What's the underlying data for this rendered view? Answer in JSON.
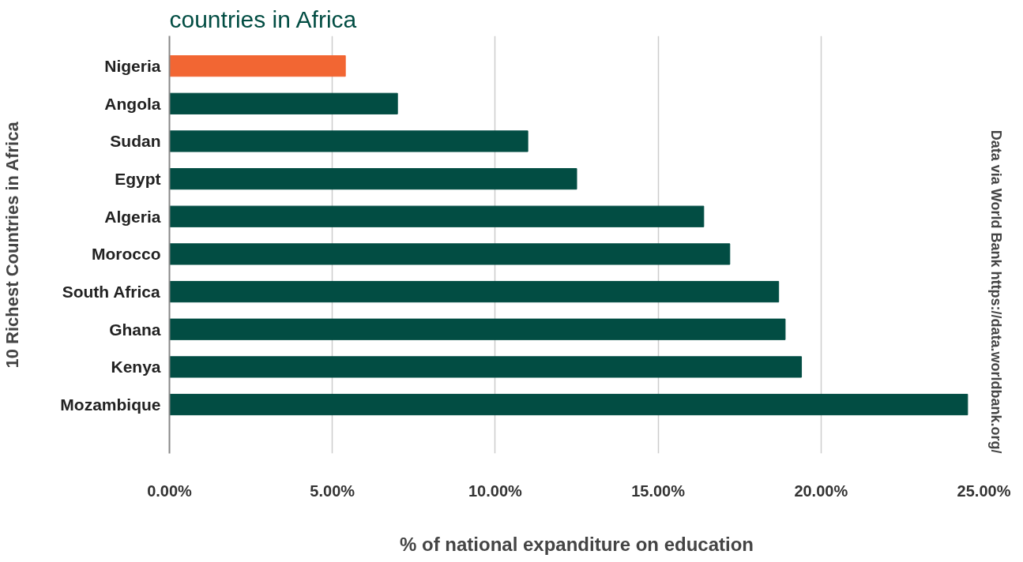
{
  "chart_data": {
    "type": "bar",
    "orientation": "horizontal",
    "title": "countries in Africa",
    "xlabel": "% of national expanditure on education",
    "ylabel": "10 Richest Countries in Africa",
    "annotations": [
      "Data via World Bank https://data.worldbank.org/"
    ],
    "categories": [
      "Nigeria",
      "Angola",
      "Sudan",
      "Egypt",
      "Algeria",
      "Morocco",
      "South Africa",
      "Ghana",
      "Kenya",
      "Mozambique"
    ],
    "values": [
      5.4,
      7.0,
      11.0,
      12.5,
      16.4,
      17.2,
      18.7,
      18.9,
      19.4,
      24.5
    ],
    "colors": [
      "#f26633",
      "#024d43",
      "#024d43",
      "#024d43",
      "#024d43",
      "#024d43",
      "#024d43",
      "#024d43",
      "#024d43",
      "#024d43"
    ],
    "xlim": [
      0,
      25
    ],
    "xticks": [
      {
        "value": 0,
        "label": "0.00%"
      },
      {
        "value": 5,
        "label": "5.00%"
      },
      {
        "value": 10,
        "label": "10.00%"
      },
      {
        "value": 15,
        "label": "15.00%"
      },
      {
        "value": 20,
        "label": "20.00%"
      },
      {
        "value": 25,
        "label": "25.00%"
      }
    ],
    "grid": "x"
  }
}
